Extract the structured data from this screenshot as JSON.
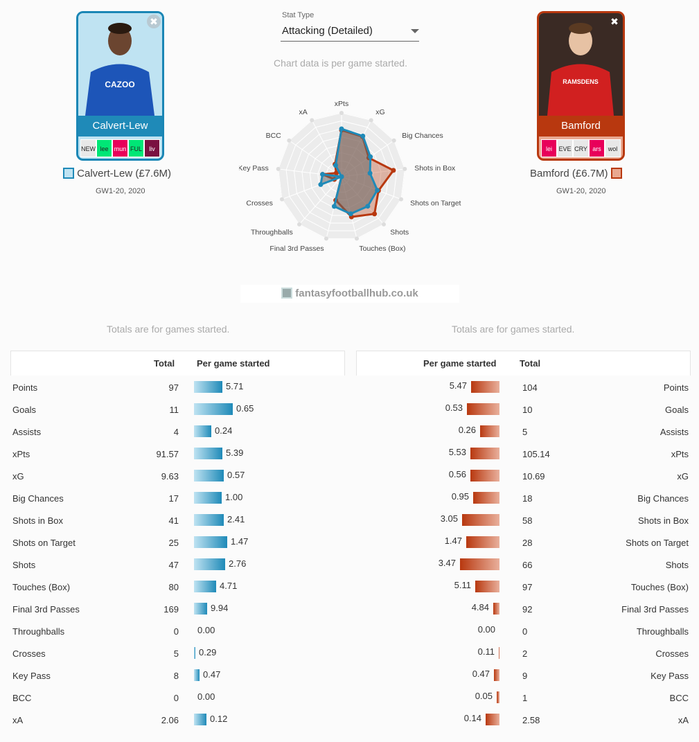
{
  "stat_type": {
    "label": "Stat Type",
    "value": "Attacking (Detailed)"
  },
  "chart_note": "Chart data is per game started.",
  "watermark": "fantasyfootballhub.co.uk",
  "players": [
    {
      "name": "Calvert-Lew",
      "label": "Calvert-Lew (£7.6M)",
      "period": "GW1-20, 2020",
      "fixtures": [
        "NEW",
        "lee",
        "mun",
        "FUL",
        "liv"
      ],
      "fixture_colors": [
        "#e8e8e8",
        "#00e676",
        "#e8005a",
        "#00e676",
        "#7a1040"
      ],
      "color": "#1f8ab8"
    },
    {
      "name": "Bamford",
      "label": "Bamford (£6.7M)",
      "period": "GW1-20, 2020",
      "fixtures": [
        "lei",
        "EVE",
        "CRY",
        "ars",
        "wol"
      ],
      "fixture_colors": [
        "#e8005a",
        "#e8e8e8",
        "#e8e8e8",
        "#e8005a",
        "#e8e8e8"
      ],
      "color": "#b8380f"
    }
  ],
  "totals_note": "Totals are for games started.",
  "table_headers": {
    "total": "Total",
    "per_game": "Per game started"
  },
  "chart_data": {
    "type": "radar",
    "axes": [
      "xPts",
      "xG",
      "Big Chances",
      "Shots in Box",
      "Shots on Target",
      "Shots",
      "Touches (Box)",
      "Final 3rd Passes",
      "Throughballs",
      "Crosses",
      "Key Pass",
      "BCC",
      "xA"
    ],
    "series": [
      {
        "name": "Calvert-Lew",
        "values": [
          0.75,
          0.72,
          0.55,
          0.45,
          0.6,
          0.62,
          0.6,
          0.48,
          0.0,
          0.35,
          0.3,
          0.0,
          0.2
        ]
      },
      {
        "name": "Bamford",
        "values": [
          0.73,
          0.71,
          0.52,
          0.82,
          0.62,
          0.78,
          0.65,
          0.38,
          0.0,
          0.12,
          0.3,
          0.1,
          0.22
        ]
      }
    ]
  },
  "stats": [
    {
      "label": "Points",
      "l_total": "97",
      "l_pg": "5.71",
      "r_total": "104",
      "r_pg": "5.47",
      "l_frac": 0.55,
      "r_frac": 0.55
    },
    {
      "label": "Goals",
      "l_total": "11",
      "l_pg": "0.65",
      "r_total": "10",
      "r_pg": "0.53",
      "l_frac": 0.75,
      "r_frac": 0.62
    },
    {
      "label": "Assists",
      "l_total": "4",
      "l_pg": "0.24",
      "r_total": "5",
      "r_pg": "0.26",
      "l_frac": 0.33,
      "r_frac": 0.37
    },
    {
      "label": "xPts",
      "l_total": "91.57",
      "l_pg": "5.39",
      "r_total": "105.14",
      "r_pg": "5.53",
      "l_frac": 0.54,
      "r_frac": 0.56
    },
    {
      "label": "xG",
      "l_total": "9.63",
      "l_pg": "0.57",
      "r_total": "10.69",
      "r_pg": "0.56",
      "l_frac": 0.57,
      "r_frac": 0.56
    },
    {
      "label": "Big Chances",
      "l_total": "17",
      "l_pg": "1.00",
      "r_total": "18",
      "r_pg": "0.95",
      "l_frac": 0.53,
      "r_frac": 0.51
    },
    {
      "label": "Shots in Box",
      "l_total": "41",
      "l_pg": "2.41",
      "r_total": "58",
      "r_pg": "3.05",
      "l_frac": 0.57,
      "r_frac": 0.72
    },
    {
      "label": "Shots on Target",
      "l_total": "25",
      "l_pg": "1.47",
      "r_total": "28",
      "r_pg": "1.47",
      "l_frac": 0.64,
      "r_frac": 0.64
    },
    {
      "label": "Shots",
      "l_total": "47",
      "l_pg": "2.76",
      "r_total": "66",
      "r_pg": "3.47",
      "l_frac": 0.6,
      "r_frac": 0.76
    },
    {
      "label": "Touches (Box)",
      "l_total": "80",
      "l_pg": "4.71",
      "r_total": "97",
      "r_pg": "5.11",
      "l_frac": 0.42,
      "r_frac": 0.46
    },
    {
      "label": "Final 3rd Passes",
      "l_total": "169",
      "l_pg": "9.94",
      "r_total": "92",
      "r_pg": "4.84",
      "l_frac": 0.25,
      "r_frac": 0.12
    },
    {
      "label": "Throughballs",
      "l_total": "0",
      "l_pg": "0.00",
      "r_total": "0",
      "r_pg": "0.00",
      "l_frac": 0.0,
      "r_frac": 0.0
    },
    {
      "label": "Crosses",
      "l_total": "5",
      "l_pg": "0.29",
      "r_total": "2",
      "r_pg": "0.11",
      "l_frac": 0.03,
      "r_frac": 0.01
    },
    {
      "label": "Key Pass",
      "l_total": "8",
      "l_pg": "0.47",
      "r_total": "9",
      "r_pg": "0.47",
      "l_frac": 0.11,
      "r_frac": 0.11
    },
    {
      "label": "BCC",
      "l_total": "0",
      "l_pg": "0.00",
      "r_total": "1",
      "r_pg": "0.05",
      "l_frac": 0.0,
      "r_frac": 0.05
    },
    {
      "label": "xA",
      "l_total": "2.06",
      "l_pg": "0.12",
      "r_total": "2.58",
      "r_pg": "0.14",
      "l_frac": 0.24,
      "r_frac": 0.27
    }
  ]
}
